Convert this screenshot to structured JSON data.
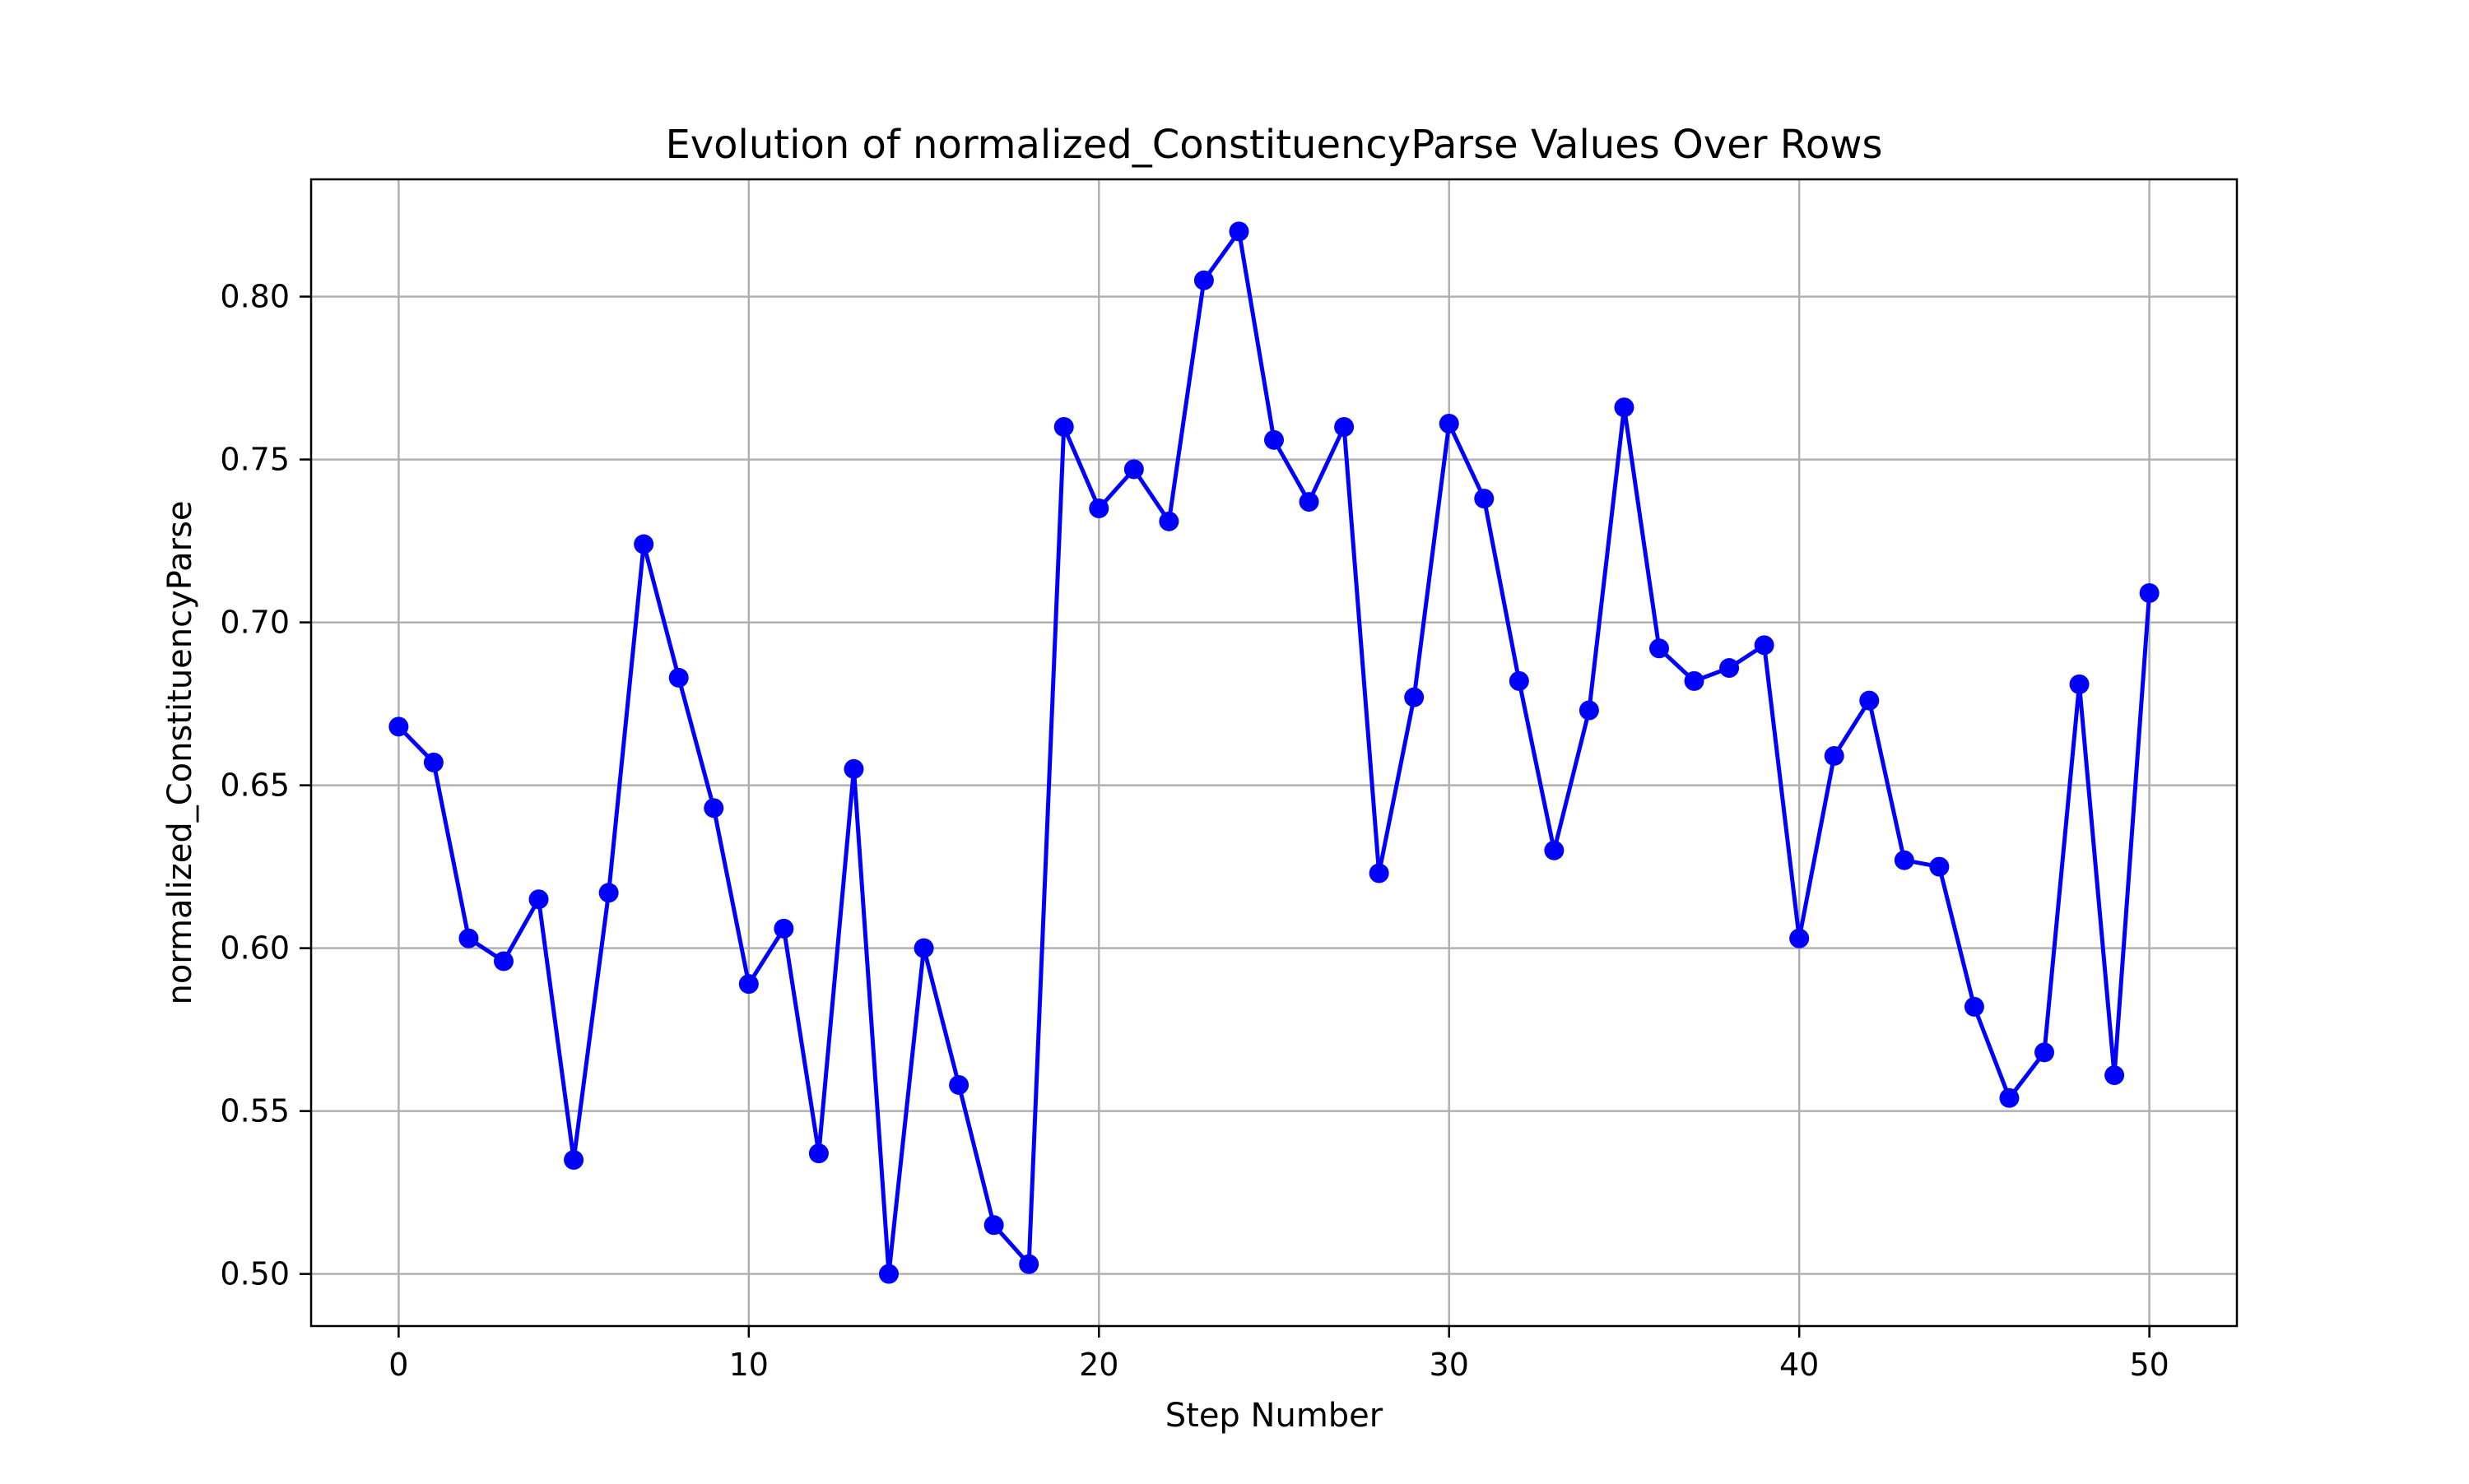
{
  "chart_data": {
    "type": "line",
    "title": "Evolution of normalized_ConstituencyParse Values Over Rows",
    "xlabel": "Step Number",
    "ylabel": "normalized_ConstituencyParse",
    "xlim": [
      -2.5,
      52.5
    ],
    "ylim": [
      0.484,
      0.836
    ],
    "xticks": [
      0,
      10,
      20,
      30,
      40,
      50
    ],
    "xtick_labels": [
      "0",
      "10",
      "20",
      "30",
      "40",
      "50"
    ],
    "yticks": [
      0.5,
      0.55,
      0.6,
      0.65,
      0.7,
      0.75,
      0.8
    ],
    "ytick_labels": [
      "0.50",
      "0.55",
      "0.60",
      "0.65",
      "0.70",
      "0.75",
      "0.80"
    ],
    "grid": true,
    "series": [
      {
        "color": "#0000ff",
        "marker": "circle",
        "x": [
          0,
          1,
          2,
          3,
          4,
          5,
          6,
          7,
          8,
          9,
          10,
          11,
          12,
          13,
          14,
          15,
          16,
          17,
          18,
          19,
          20,
          21,
          22,
          23,
          24,
          25,
          26,
          27,
          28,
          29,
          30,
          31,
          32,
          33,
          34,
          35,
          36,
          37,
          38,
          39,
          40,
          41,
          42,
          43,
          44,
          45,
          46,
          47,
          48,
          49,
          50
        ],
        "y": [
          0.668,
          0.657,
          0.603,
          0.596,
          0.615,
          0.535,
          0.617,
          0.724,
          0.683,
          0.643,
          0.589,
          0.606,
          0.537,
          0.655,
          0.5,
          0.6,
          0.558,
          0.515,
          0.503,
          0.76,
          0.735,
          0.747,
          0.731,
          0.805,
          0.82,
          0.756,
          0.737,
          0.76,
          0.623,
          0.677,
          0.761,
          0.738,
          0.682,
          0.63,
          0.673,
          0.766,
          0.692,
          0.682,
          0.686,
          0.693,
          0.603,
          0.659,
          0.676,
          0.627,
          0.625,
          0.582,
          0.554,
          0.568,
          0.681,
          0.561,
          0.709
        ]
      }
    ]
  }
}
